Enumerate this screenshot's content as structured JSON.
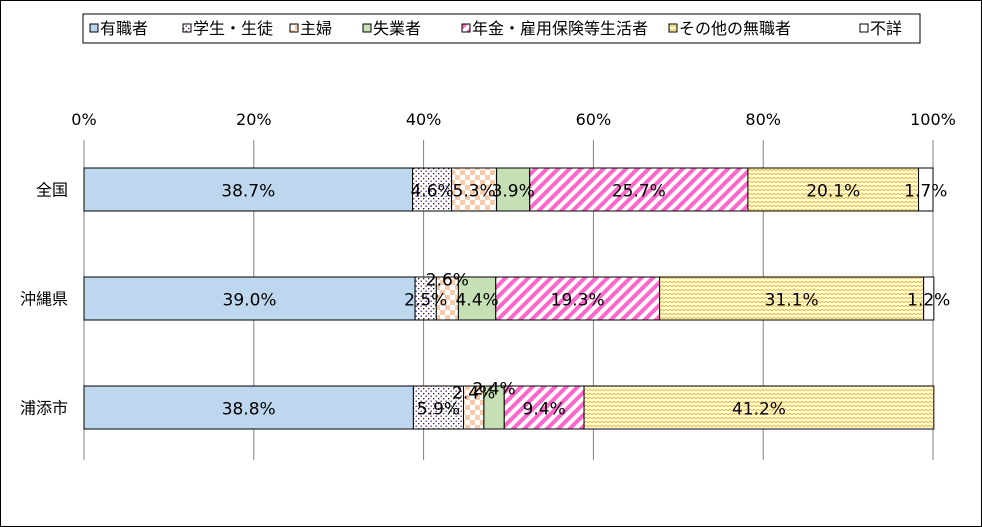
{
  "chart_data": {
    "type": "bar",
    "orientation": "horizontal",
    "stacked": true,
    "percent_stacked": true,
    "categories": [
      "全国",
      "沖縄県",
      "浦添市"
    ],
    "series": [
      {
        "name": "有職者",
        "values": [
          38.7,
          39.0,
          38.8
        ],
        "labels": [
          "38.7%",
          "39.0%",
          "38.8%"
        ],
        "color": "#bdd7ee",
        "pattern": "solid"
      },
      {
        "name": "学生・生徒",
        "values": [
          4.6,
          2.5,
          5.9
        ],
        "labels": [
          "4.6%",
          "2.5%",
          "5.9%"
        ],
        "color": "#7030a0",
        "pattern": "dots"
      },
      {
        "name": "主婦",
        "values": [
          5.3,
          2.6,
          2.4
        ],
        "labels": [
          "5.3%",
          "2.6%",
          "2.4%"
        ],
        "color": "#f4b183",
        "pattern": "checker"
      },
      {
        "name": "失業者",
        "values": [
          3.9,
          4.4,
          2.4
        ],
        "labels": [
          "3.9%",
          "4.4%",
          "2.4%"
        ],
        "color": "#c5e0b4",
        "pattern": "solid"
      },
      {
        "name": "年金・雇用保険等生活者",
        "values": [
          25.7,
          19.3,
          9.4
        ],
        "labels": [
          "25.7%",
          "19.3%",
          "9.4%"
        ],
        "color": "#ff66cc",
        "pattern": "diagonal"
      },
      {
        "name": "その他の無職者",
        "values": [
          20.1,
          31.1,
          41.2
        ],
        "labels": [
          "20.1%",
          "31.1%",
          "41.2%"
        ],
        "color": "#ffc000",
        "pattern": "zigzag"
      },
      {
        "name": "不詳",
        "values": [
          1.7,
          1.2,
          0
        ],
        "labels": [
          "1.7%",
          "1.2%",
          ""
        ],
        "color": "#ffffff",
        "pattern": "solid"
      }
    ],
    "x_ticks": [
      "0%",
      "20%",
      "40%",
      "60%",
      "80%",
      "100%"
    ],
    "xlim": [
      0,
      100
    ],
    "grid": "vertical",
    "legend_position": "top"
  }
}
